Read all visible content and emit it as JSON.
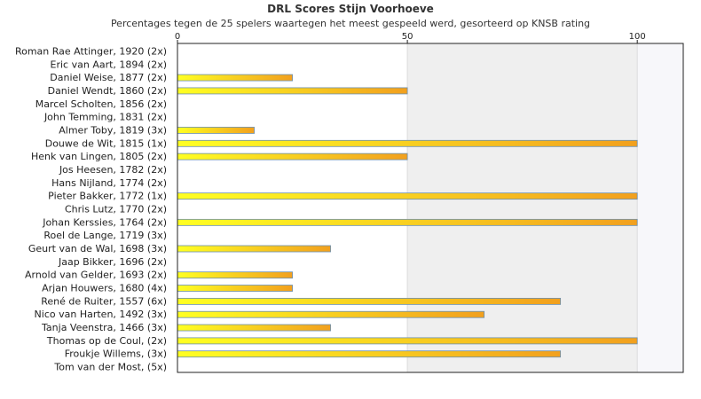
{
  "chart_data": {
    "type": "bar",
    "orientation": "horizontal",
    "title": "DRL Scores Stijn Voorhoeve",
    "subtitle": "Percentages tegen de 25 spelers waartegen het meest gespeeld werd, gesorteerd op KNSB rating",
    "categories": [
      "Roman Rae Attinger, 1920 (2x)",
      "Eric van Aart, 1894 (2x)",
      "Daniel Weise, 1877 (2x)",
      "Daniel Wendt, 1860 (2x)",
      "Marcel Scholten, 1856 (2x)",
      "John Temming, 1831 (2x)",
      "Almer Toby, 1819 (3x)",
      "Douwe de Wit, 1815 (1x)",
      "Henk van Lingen, 1805 (2x)",
      "Jos Heesen, 1782 (2x)",
      "Hans Nijland, 1774 (2x)",
      "Pieter Bakker, 1772 (1x)",
      "Chris Lutz, 1770 (2x)",
      "Johan Kerssies, 1764 (2x)",
      "Roel de Lange, 1719 (3x)",
      "Geurt van de Wal, 1698 (3x)",
      "Jaap Bikker, 1696 (2x)",
      "Arnold van Gelder, 1693 (2x)",
      "Arjan Houwers, 1680 (4x)",
      "René de Ruiter, 1557 (6x)",
      "Nico van Harten, 1492 (3x)",
      "Tanja Veenstra, 1466 (3x)",
      "Thomas op de Coul,  (2x)",
      "Froukje Willems,  (3x)",
      "Tom van der Most,  (5x)"
    ],
    "values": [
      0,
      0,
      25,
      50,
      0,
      0,
      16.7,
      100,
      50,
      0,
      0,
      100,
      0,
      100,
      0,
      33.3,
      0,
      25,
      25,
      83.3,
      66.7,
      33.3,
      100,
      83.3,
      0
    ],
    "xlim": [
      0,
      110
    ],
    "xticks": [
      "0",
      "50",
      "100"
    ],
    "xaxis_position": "top",
    "shaded_bands": [
      [
        50,
        100
      ],
      [
        100,
        110
      ]
    ],
    "colors": {
      "bar_start": "#ffff22",
      "bar_end": "#f2a01e",
      "bar_border": "#6a8fb0",
      "band_1": "#efefef",
      "band_2": "#f7f7fa",
      "axis": "#222222"
    }
  }
}
